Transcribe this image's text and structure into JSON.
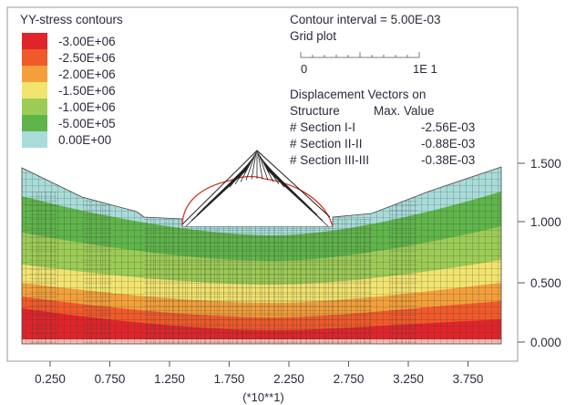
{
  "legend": {
    "title": "YY-stress contours",
    "items": [
      {
        "label": "-3.00E+06",
        "color": "#e0242a"
      },
      {
        "label": "-2.50E+06",
        "color": "#f05a2a"
      },
      {
        "label": "-2.00E+06",
        "color": "#f3a03a"
      },
      {
        "label": "-1.50E+06",
        "color": "#f2e46e"
      },
      {
        "label": "-1.00E+06",
        "color": "#9ccc55"
      },
      {
        "label": "-5.00E+05",
        "color": "#5fb54a"
      },
      {
        "label": "0.00E+00",
        "color": "#a8dcd9"
      }
    ]
  },
  "info": {
    "contour_interval": "Contour interval =  5.00E-03",
    "grid_plot": "Grid plot",
    "scale_start": "0",
    "scale_end": "1E  1",
    "displacement_title": "Displacement Vectors on",
    "col_structure": "Structure",
    "col_max_value": "Max. Value",
    "sections": [
      {
        "name": "# Section I-I",
        "value": "-2.56E-03"
      },
      {
        "name": "# Section II-II",
        "value": "-0.88E-03"
      },
      {
        "name": "# Section III-III",
        "value": "-0.38E-03"
      }
    ]
  },
  "axes": {
    "x_ticks": [
      "0.250",
      "0.750",
      "1.250",
      "1.750",
      "2.250",
      "2.750",
      "3.250",
      "3.750"
    ],
    "x_unit": "(*10**1)",
    "y_ticks": [
      "1.500",
      "1.000",
      "0.500",
      "0.000"
    ]
  },
  "colors": {
    "zone_red": "#e0242a",
    "zone_redorange": "#f05a2a",
    "zone_orange": "#f3a03a",
    "zone_yellow": "#f2e46e",
    "zone_lightgreen": "#9ccc55",
    "zone_green": "#5fb54a",
    "zone_cyan": "#a8dcd9",
    "mesh": "#3a3a3a",
    "vector": "#222222",
    "arch": "#d23a2a"
  }
}
